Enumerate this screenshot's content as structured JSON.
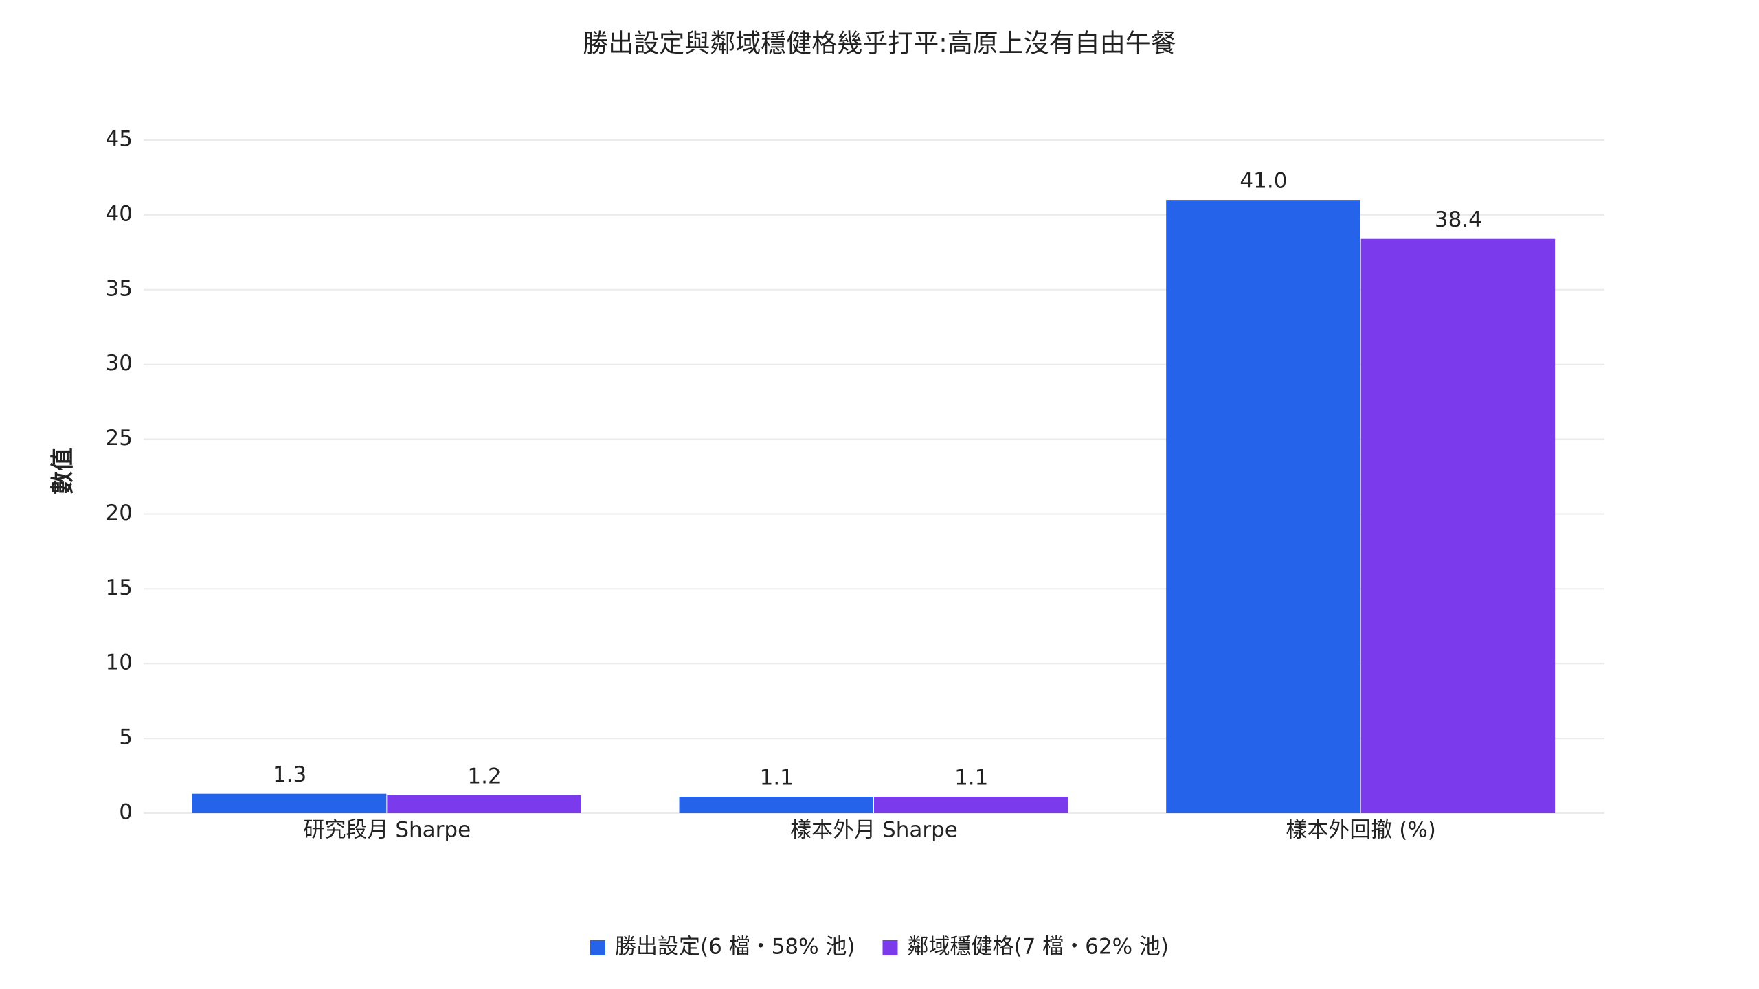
{
  "chart_data": {
    "type": "bar",
    "title": "勝出設定與鄰域穩健格幾乎打平:高原上沒有自由午餐",
    "y_label": "數值",
    "categories": [
      "研究段月 Sharpe",
      "樣本外月 Sharpe",
      "樣本外回撤 (%)"
    ],
    "series": [
      {
        "name": "勝出設定(6 檔・58% 池)",
        "color": "#2563eb",
        "values": [
          1.3,
          1.1,
          41
        ],
        "value_labels": [
          "1.3",
          "1.1",
          "41.0"
        ]
      },
      {
        "name": "鄰域穩健格(7 檔・62% 池)",
        "color": "#7c3aed",
        "values": [
          1.2,
          1.1,
          38.4
        ],
        "value_labels": [
          "1.2",
          "1.1",
          "38.4"
        ]
      }
    ],
    "ylim": [
      0,
      45
    ],
    "yticks": [
      0,
      5,
      10,
      15,
      20,
      25,
      30,
      35,
      40,
      45
    ],
    "grid": true,
    "legend": "bottom"
  }
}
